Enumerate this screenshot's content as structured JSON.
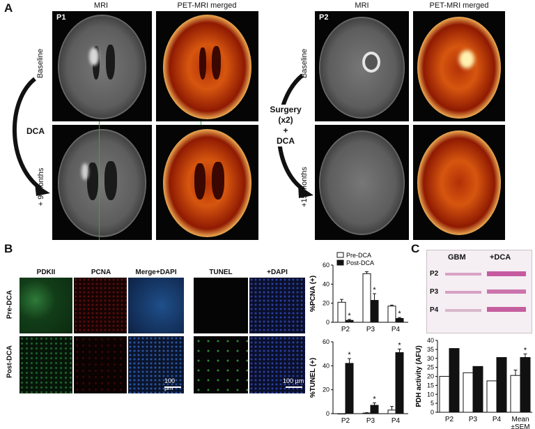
{
  "panel_a": {
    "letter": "A",
    "p1": {
      "tag": "P1",
      "col_mri": "MRI",
      "col_pet": "PET-MRI merged",
      "row_baseline": "Baseline",
      "row_followup": "+ 9 months",
      "treatment": "DCA"
    },
    "p2": {
      "tag": "P2",
      "col_mri": "MRI",
      "col_pet": "PET-MRI merged",
      "row_baseline": "Baseline",
      "row_followup": "+15 months",
      "treatment_line1": "Surgery",
      "treatment_line2": "(x2)",
      "treatment_line3": "+",
      "treatment_line4": "DCA"
    }
  },
  "panel_b": {
    "letter": "B",
    "col_labels": [
      "PDKII",
      "PCNA",
      "Merge+DAPI",
      "TUNEL",
      "+DAPI"
    ],
    "row_pre": "Pre-DCA",
    "row_post": "Post-DCA",
    "scale_label": "100 µm"
  },
  "panel_c": {
    "letter": "C",
    "blot_headers": [
      "GBM",
      "+DCA"
    ],
    "blot_rows": [
      "P2",
      "P3",
      "P4"
    ]
  },
  "chart_data": [
    {
      "type": "bar",
      "ylabel": "%PCNA (+)",
      "categories": [
        "P2",
        "P3",
        "P4"
      ],
      "ylim": [
        0,
        60
      ],
      "yticks": [
        0,
        20,
        40,
        60
      ],
      "legend": [
        "Pre-DCA",
        "Post-DCA"
      ],
      "series": [
        {
          "name": "Pre-DCA",
          "values": [
            21,
            51,
            17
          ],
          "errors": [
            3,
            2,
            1
          ]
        },
        {
          "name": "Post-DCA",
          "values": [
            2,
            23,
            4
          ],
          "errors": [
            1,
            7,
            1
          ]
        }
      ],
      "significant": [
        true,
        true,
        true
      ]
    },
    {
      "type": "bar",
      "ylabel": "%TUNEL (+)",
      "categories": [
        "P2",
        "P3",
        "P4"
      ],
      "ylim": [
        0,
        60
      ],
      "yticks": [
        0,
        20,
        40,
        60
      ],
      "series": [
        {
          "name": "Pre-DCA",
          "values": [
            0,
            0.5,
            3
          ],
          "errors": [
            0,
            0.3,
            3
          ]
        },
        {
          "name": "Post-DCA",
          "values": [
            42,
            7,
            51
          ],
          "errors": [
            4,
            2,
            3
          ]
        }
      ],
      "significant": [
        true,
        true,
        true
      ]
    },
    {
      "type": "bar",
      "ylabel": "PDH activity (AFU)",
      "categories": [
        "P2",
        "P3",
        "P4",
        "Mean\n±SEM"
      ],
      "category_lines": [
        [
          "P2"
        ],
        [
          "P3"
        ],
        [
          "P4"
        ],
        [
          "Mean",
          "±SEM"
        ]
      ],
      "ylim": [
        0,
        40
      ],
      "yticks": [
        0,
        5,
        10,
        15,
        20,
        25,
        30,
        35,
        40
      ],
      "series": [
        {
          "name": "GBM",
          "values": [
            20,
            22,
            17.5,
            20.5
          ],
          "errors": [
            0,
            0,
            0,
            3
          ]
        },
        {
          "name": "+DCA",
          "values": [
            35.5,
            25.5,
            30.5,
            30.5
          ],
          "errors": [
            0,
            0,
            0,
            2
          ]
        }
      ],
      "significant": [
        false,
        false,
        false,
        true
      ]
    }
  ]
}
